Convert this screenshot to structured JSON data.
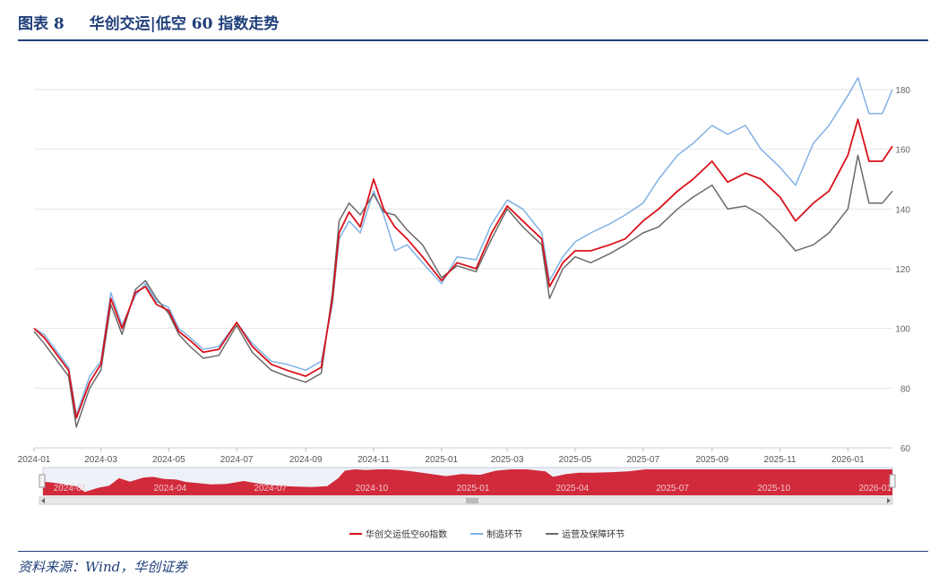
{
  "header": {
    "figure_label": "图表 8",
    "title": "华创交运|低空 60 指数走势"
  },
  "footer": {
    "source": "资料来源：Wind，华创证券"
  },
  "colors": {
    "title": "#1f3f7a",
    "series_main": "#d9111b",
    "series_manufacturing": "#7fb2e5",
    "series_operations": "#6b6b6b",
    "navigator_fill": "#d12a3a",
    "grid": "#e6e6e6"
  },
  "chart_data": {
    "type": "line",
    "y_ticks": [
      "60",
      "80",
      "100",
      "120",
      "140",
      "160",
      "180"
    ],
    "ylim": [
      60,
      186
    ],
    "x_ticks": [
      "2024-01",
      "2024-03",
      "2024-05",
      "2024-07",
      "2024-09",
      "2024-11",
      "2025-01",
      "2025-03",
      "2025-05",
      "2025-07",
      "2025-09",
      "2025-11",
      "2026-01"
    ],
    "navigator_ticks": [
      "2024-01",
      "2024-04",
      "2024-07",
      "2024-10",
      "2025-01",
      "2025-04",
      "2025-07",
      "2025-10",
      "2026-01"
    ],
    "grid": true,
    "legend_position": "bottom-center",
    "x": [
      "2024-01-01",
      "2024-01-10",
      "2024-01-20",
      "2024-02-01",
      "2024-02-08",
      "2024-02-20",
      "2024-03-01",
      "2024-03-10",
      "2024-03-20",
      "2024-04-01",
      "2024-04-10",
      "2024-04-20",
      "2024-05-01",
      "2024-05-10",
      "2024-05-20",
      "2024-06-01",
      "2024-06-15",
      "2024-07-01",
      "2024-07-15",
      "2024-08-01",
      "2024-08-15",
      "2024-09-01",
      "2024-09-15",
      "2024-09-25",
      "2024-10-01",
      "2024-10-10",
      "2024-10-20",
      "2024-11-01",
      "2024-11-10",
      "2024-11-20",
      "2024-12-01",
      "2024-12-15",
      "2025-01-01",
      "2025-01-15",
      "2025-02-01",
      "2025-02-15",
      "2025-03-01",
      "2025-03-15",
      "2025-04-01",
      "2025-04-08",
      "2025-04-20",
      "2025-05-01",
      "2025-05-15",
      "2025-06-01",
      "2025-06-15",
      "2025-07-01",
      "2025-07-15",
      "2025-08-01",
      "2025-08-15",
      "2025-09-01",
      "2025-09-15",
      "2025-10-01",
      "2025-10-15",
      "2025-11-01",
      "2025-11-15",
      "2025-12-01",
      "2025-12-15",
      "2026-01-01",
      "2026-01-10",
      "2026-01-20",
      "2026-02-01",
      "2026-02-10"
    ],
    "series": [
      {
        "name": "华创交运低空60指数",
        "color": "#d9111b",
        "values": [
          100,
          97,
          92,
          86,
          70,
          82,
          88,
          110,
          100,
          112,
          114,
          108,
          106,
          99,
          96,
          92,
          93,
          102,
          94,
          88,
          86,
          84,
          87,
          110,
          132,
          139,
          134,
          150,
          140,
          134,
          130,
          124,
          116,
          122,
          120,
          132,
          141,
          136,
          130,
          114,
          122,
          126,
          126,
          128,
          130,
          136,
          140,
          146,
          150,
          156,
          149,
          152,
          150,
          144,
          136,
          142,
          146,
          158,
          170,
          156,
          156,
          161
        ]
      },
      {
        "name": "制造环节",
        "color": "#7fb2e5",
        "values": [
          100,
          98,
          93,
          87,
          71,
          84,
          89,
          112,
          101,
          111,
          115,
          109,
          107,
          100,
          97,
          93,
          94,
          102,
          95,
          89,
          88,
          86,
          89,
          108,
          130,
          136,
          132,
          146,
          138,
          126,
          128,
          122,
          115,
          124,
          123,
          135,
          143,
          140,
          132,
          116,
          124,
          129,
          132,
          135,
          138,
          142,
          150,
          158,
          162,
          168,
          165,
          168,
          160,
          154,
          148,
          162,
          168,
          178,
          184,
          172,
          172,
          180
        ]
      },
      {
        "name": "运营及保障环节",
        "color": "#6b6b6b",
        "values": [
          99,
          95,
          90,
          84,
          67,
          80,
          86,
          108,
          98,
          113,
          116,
          110,
          105,
          98,
          94,
          90,
          91,
          101,
          92,
          86,
          84,
          82,
          85,
          112,
          136,
          142,
          138,
          145,
          139,
          138,
          133,
          128,
          117,
          121,
          119,
          130,
          140,
          134,
          128,
          110,
          120,
          124,
          122,
          125,
          128,
          132,
          134,
          140,
          144,
          148,
          140,
          141,
          138,
          132,
          126,
          128,
          132,
          140,
          158,
          142,
          142,
          146
        ]
      }
    ]
  }
}
